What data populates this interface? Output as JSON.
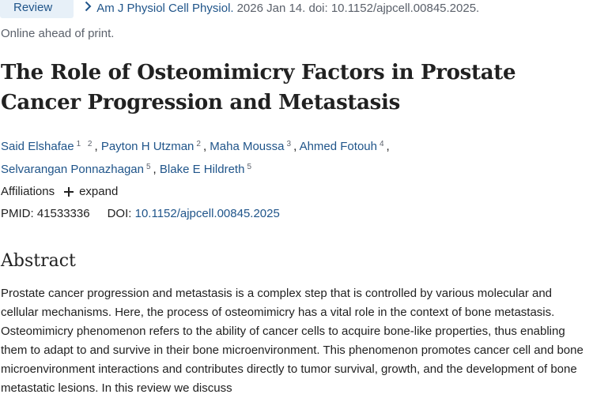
{
  "header": {
    "badge": "Review",
    "journal_link": "Am J Physiol Cell Physiol.",
    "citation_rest": "2026 Jan 14. doi: 10.1152/ajpcell.00845.2025.",
    "status": "Online ahead of print."
  },
  "article": {
    "title": "The Role of Osteomimicry Factors in Prostate Cancer Progression and Metastasis",
    "authors": [
      {
        "name": "Said Elshafae",
        "affils": "1 2"
      },
      {
        "name": "Payton H Utzman",
        "affils": "2"
      },
      {
        "name": "Maha Moussa",
        "affils": "3"
      },
      {
        "name": "Ahmed Fotouh",
        "affils": "4"
      },
      {
        "name": "Selvarangan Ponnazhagan",
        "affils": "5"
      },
      {
        "name": "Blake E Hildreth",
        "affils": "5"
      }
    ],
    "affiliations_label": "Affiliations",
    "expand_label": "expand",
    "pmid_label": "PMID:",
    "pmid": "41533336",
    "doi_label": "DOI:",
    "doi": "10.1152/ajpcell.00845.2025"
  },
  "abstract": {
    "heading": "Abstract",
    "text": "Prostate cancer progression and metastasis is a complex step that is controlled by various molecular and cellular mechanisms. Here, the process of osteomimicry has a vital role in the context of bone metastasis. Osteomimicry phenomenon refers to the ability of cancer cells to acquire bone-like properties, thus enabling them to adapt to and survive in their bone microenvironment. This phenomenon promotes cancer cell and bone microenvironment interactions and contributes directly to tumor survival, growth, and the development of bone metastatic lesions. In this review we discuss"
  },
  "colors": {
    "link": "#20558a",
    "badge_bg": "#e7f0f8",
    "text": "#212121",
    "muted": "#5b616b"
  },
  "icons": {
    "chevron": "chevron-right-icon",
    "expand": "plus-icon"
  }
}
